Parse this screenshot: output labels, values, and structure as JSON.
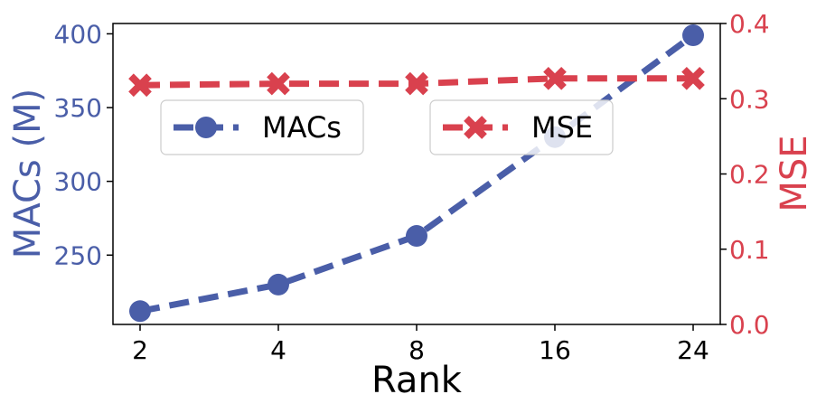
{
  "chart_data": {
    "type": "line",
    "xlabel": "Rank",
    "categories": [
      "2",
      "4",
      "8",
      "16",
      "24"
    ],
    "left_axis": {
      "label": "MACs (M)",
      "color": "#4a5ea8",
      "ticks": [
        250,
        300,
        350,
        400
      ],
      "ylim": [
        203,
        407
      ]
    },
    "right_axis": {
      "label": "MSE",
      "color": "#d9414e",
      "ticks": [
        "0.0",
        "0.1",
        "0.2",
        "0.3",
        "0.4"
      ],
      "ylim": [
        0.0,
        0.4
      ]
    },
    "series": [
      {
        "name": "MACs",
        "axis": "left",
        "marker": "circle",
        "linestyle": "dashed",
        "color": "#4a5ea8",
        "values": [
          212,
          230,
          263,
          330,
          399
        ]
      },
      {
        "name": "MSE",
        "axis": "right",
        "marker": "x",
        "linestyle": "dashed",
        "color": "#d9414e",
        "values": [
          0.318,
          0.32,
          0.32,
          0.327,
          0.327
        ]
      }
    ],
    "legend": [
      "top-left",
      "top-center"
    ],
    "grid": false
  }
}
